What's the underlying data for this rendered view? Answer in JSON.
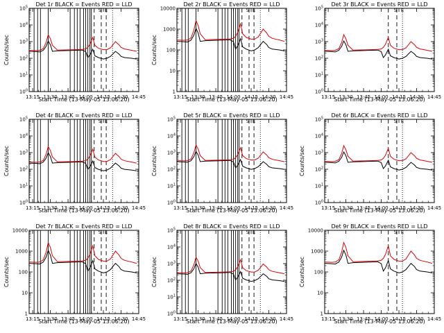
{
  "figure_title": "",
  "chart_data": [
    {
      "type": "line",
      "title": "Det  1r  BLACK = Events  RED = LLD",
      "xlabel": "Start Time (13-May-05 13:06:20)",
      "ylabel": "Counts/sec",
      "ytick_style": "exp",
      "ylim": [
        1,
        100000
      ],
      "xlim": [
        13.2,
        14.75
      ],
      "xtick_labels": [
        "13:15",
        "13:30",
        "13:45",
        "14:00",
        "14:15",
        "14:30",
        "14:45"
      ],
      "xtick_values": [
        13.25,
        13.5,
        13.75,
        14.0,
        14.25,
        14.5,
        14.75
      ],
      "solid_vlines": [
        13.27,
        13.32,
        13.36,
        13.47,
        13.78,
        13.84,
        13.88,
        13.92,
        13.97,
        14.0,
        14.03,
        14.06,
        14.08
      ],
      "dashed_vlines": [
        14.12,
        14.22,
        14.29
      ],
      "dotted_vlines": [
        14.38
      ],
      "scale": 1.0,
      "letters": [
        "S",
        "E"
      ],
      "letter_x": [
        14.2,
        14.29
      ]
    },
    {
      "type": "line",
      "title": "Det  2r  BLACK = Events  RED = LLD",
      "xlabel": "Start Time (13-May-05 13:06:20)",
      "ylabel": "Counts/sec",
      "ytick_style": "plain",
      "ylim": [
        1,
        10000
      ],
      "xlim": [
        13.2,
        14.75
      ],
      "xtick_labels": [
        "13:15",
        "13:30",
        "13:45",
        "14:00",
        "14:15",
        "14:30",
        "14:45"
      ],
      "xtick_values": [
        13.25,
        13.5,
        13.75,
        14.0,
        14.25,
        14.5,
        14.75
      ],
      "solid_vlines": [
        13.27,
        13.32,
        13.36,
        13.47,
        13.78,
        13.84,
        13.88,
        13.92,
        13.97,
        14.0,
        14.03,
        14.06,
        14.08
      ],
      "dashed_vlines": [
        14.12,
        14.22,
        14.29
      ],
      "dotted_vlines": [
        14.38
      ],
      "scale": 1.0,
      "letters": [
        "S",
        "E"
      ],
      "letter_x": [
        14.2,
        14.29
      ]
    },
    {
      "type": "line",
      "title": "Det  3r  BLACK = Events  RED = LLD",
      "xlabel": "Start Time (13-May-05 13:06:20)",
      "ylabel": "",
      "ytick_style": "exp",
      "ylim": [
        1,
        100000
      ],
      "xlim": [
        13.2,
        14.75
      ],
      "xtick_labels": [
        "13:15",
        "13:30",
        "13:45",
        "14:00",
        "14:15",
        "14:30",
        "14:45"
      ],
      "xtick_values": [
        13.25,
        13.5,
        13.75,
        14.0,
        14.25,
        14.5,
        14.75
      ],
      "solid_vlines": [],
      "dashed_vlines": [
        14.1,
        14.22
      ],
      "dotted_vlines": [
        14.3
      ],
      "scale": 1.0,
      "letters": [
        "S",
        "E"
      ],
      "letter_x": [
        14.2,
        14.3
      ]
    },
    {
      "type": "line",
      "title": "Det  4r  BLACK = Events  RED = LLD",
      "xlabel": "Start Time (13-May-05 13:06:20)",
      "ylabel": "Counts/sec",
      "ytick_style": "exp",
      "ylim": [
        1,
        100000
      ],
      "xlim": [
        13.2,
        14.75
      ],
      "xtick_labels": [
        "13:15",
        "13:30",
        "13:45",
        "14:00",
        "14:15",
        "14:30",
        "14:45"
      ],
      "xtick_values": [
        13.25,
        13.5,
        13.75,
        14.0,
        14.25,
        14.5,
        14.75
      ],
      "solid_vlines": [
        13.27,
        13.32,
        13.36,
        13.47,
        13.78,
        13.84,
        13.88,
        13.92,
        13.97,
        14.0,
        14.03,
        14.06,
        14.08
      ],
      "dashed_vlines": [
        14.12,
        14.22,
        14.29
      ],
      "dotted_vlines": [
        14.38
      ],
      "scale": 0.9,
      "letters": [
        "S",
        "E"
      ],
      "letter_x": [
        14.2,
        14.29
      ]
    },
    {
      "type": "line",
      "title": "Det  5r  BLACK = Events  RED = LLD",
      "xlabel": "Start Time (13-May-05 13:06:20)",
      "ylabel": "Counts/sec",
      "ytick_style": "exp",
      "ylim": [
        1,
        100000
      ],
      "xlim": [
        13.2,
        14.75
      ],
      "xtick_labels": [
        "13:15",
        "13:30",
        "13:45",
        "14:00",
        "14:15",
        "14:30",
        "14:45"
      ],
      "xtick_values": [
        13.25,
        13.5,
        13.75,
        14.0,
        14.25,
        14.5,
        14.75
      ],
      "solid_vlines": [
        13.27,
        13.32,
        13.36,
        13.47,
        13.78,
        13.84,
        13.88,
        13.92,
        13.97,
        14.0,
        14.03,
        14.06,
        14.08
      ],
      "dashed_vlines": [
        14.12,
        14.22,
        14.29
      ],
      "dotted_vlines": [
        14.38
      ],
      "scale": 1.1,
      "letters": [
        "S",
        "E"
      ],
      "letter_x": [
        14.2,
        14.29
      ]
    },
    {
      "type": "line",
      "title": "Det  6r  BLACK = Events  RED = LLD",
      "xlabel": "Start Time (13-May-05 13:06:20)",
      "ylabel": "Counts/sec",
      "ytick_style": "exp",
      "ylim": [
        1,
        100000
      ],
      "xlim": [
        13.2,
        14.75
      ],
      "xtick_labels": [
        "13:15",
        "13:30",
        "13:45",
        "14:00",
        "14:15",
        "14:30",
        "14:45"
      ],
      "xtick_values": [
        13.25,
        13.5,
        13.75,
        14.0,
        14.25,
        14.5,
        14.75
      ],
      "solid_vlines": [],
      "dashed_vlines": [
        14.1,
        14.22
      ],
      "dotted_vlines": [
        14.3
      ],
      "scale": 1.0,
      "letters": [
        "S",
        "E"
      ],
      "letter_x": [
        14.2,
        14.3
      ]
    },
    {
      "type": "line",
      "title": "Det  7r  BLACK = Events  RED = LLD",
      "xlabel": "Start Time (13-May-05 13:06:20)",
      "ylabel": "Counts/sec",
      "ytick_style": "plain",
      "ylim": [
        1,
        10000
      ],
      "xlim": [
        13.2,
        14.75
      ],
      "xtick_labels": [
        "13:15",
        "13:30",
        "13:45",
        "14:00",
        "14:15",
        "14:30",
        "14:45"
      ],
      "xtick_values": [
        13.25,
        13.5,
        13.75,
        14.0,
        14.25,
        14.5,
        14.75
      ],
      "solid_vlines": [
        13.27,
        13.32,
        13.36,
        13.47,
        13.78,
        13.84,
        13.88,
        13.92,
        13.97,
        14.0,
        14.03,
        14.06,
        14.08
      ],
      "dashed_vlines": [
        14.12,
        14.22,
        14.29
      ],
      "dotted_vlines": [
        14.38
      ],
      "scale": 1.0,
      "letters": [
        "S",
        "E"
      ],
      "letter_x": [
        14.2,
        14.29
      ]
    },
    {
      "type": "line",
      "title": "Det  8r  BLACK = Events  RED = LLD",
      "xlabel": "Start Time (13-May-05 13:06:20)",
      "ylabel": "Counts/sec",
      "ytick_style": "exp",
      "ylim": [
        1,
        100000
      ],
      "xlim": [
        13.2,
        14.75
      ],
      "xtick_labels": [
        "13:15",
        "13:30",
        "13:45",
        "14:00",
        "14:15",
        "14:30",
        "14:45"
      ],
      "xtick_values": [
        13.25,
        13.5,
        13.75,
        14.0,
        14.25,
        14.5,
        14.75
      ],
      "solid_vlines": [
        13.27,
        13.32,
        13.36,
        13.47,
        13.78,
        13.84,
        13.88,
        13.92,
        13.97,
        14.0,
        14.03,
        14.06,
        14.08
      ],
      "dashed_vlines": [
        14.12,
        14.22,
        14.29
      ],
      "dotted_vlines": [
        14.38
      ],
      "scale": 0.95,
      "letters": [
        "S",
        "E"
      ],
      "letter_x": [
        14.2,
        14.29
      ]
    },
    {
      "type": "line",
      "title": "Det  9r  BLACK = Events  RED = LLD",
      "xlabel": "Start Time (13-May-05 13:06:20)",
      "ylabel": "Counts/sec",
      "ytick_style": "plain",
      "ylim": [
        1,
        10000
      ],
      "xlim": [
        13.2,
        14.75
      ],
      "xtick_labels": [
        "13:15",
        "13:30",
        "13:45",
        "14:00",
        "14:15",
        "14:30",
        "14:45"
      ],
      "xtick_values": [
        13.25,
        13.5,
        13.75,
        14.0,
        14.25,
        14.5,
        14.75
      ],
      "solid_vlines": [],
      "dashed_vlines": [
        14.1,
        14.22
      ],
      "dotted_vlines": [
        14.3
      ],
      "scale": 1.0,
      "letters": [
        "S",
        "E"
      ],
      "letter_x": [
        14.2,
        14.3
      ]
    }
  ],
  "series_template": {
    "lld_red": {
      "x": [
        13.2,
        13.3,
        13.35,
        13.4,
        13.44,
        13.47,
        13.5,
        13.53,
        13.6,
        13.75,
        13.85,
        13.95,
        14.0,
        14.03,
        14.06,
        14.1,
        14.13,
        14.18,
        14.25,
        14.3,
        14.35,
        14.42,
        14.47,
        14.5,
        14.55,
        14.65,
        14.72
      ],
      "y": [
        300,
        290,
        300,
        380,
        900,
        2600,
        1500,
        600,
        310,
        320,
        330,
        340,
        360,
        450,
        700,
        1800,
        600,
        400,
        330,
        330,
        420,
        1000,
        650,
        450,
        360,
        300,
        260
      ]
    },
    "events_black": {
      "x": [
        13.2,
        13.3,
        13.35,
        13.4,
        13.44,
        13.47,
        13.5,
        13.53,
        13.6,
        13.75,
        13.85,
        13.95,
        14.0,
        14.03,
        14.06,
        14.1,
        14.13,
        14.18,
        14.25,
        14.3,
        14.35,
        14.42,
        14.47,
        14.5,
        14.55,
        14.65,
        14.72
      ],
      "y": [
        260,
        250,
        240,
        300,
        520,
        1100,
        650,
        260,
        280,
        290,
        300,
        310,
        250,
        110,
        160,
        350,
        140,
        110,
        90,
        100,
        130,
        260,
        180,
        130,
        110,
        100,
        90
      ]
    }
  }
}
